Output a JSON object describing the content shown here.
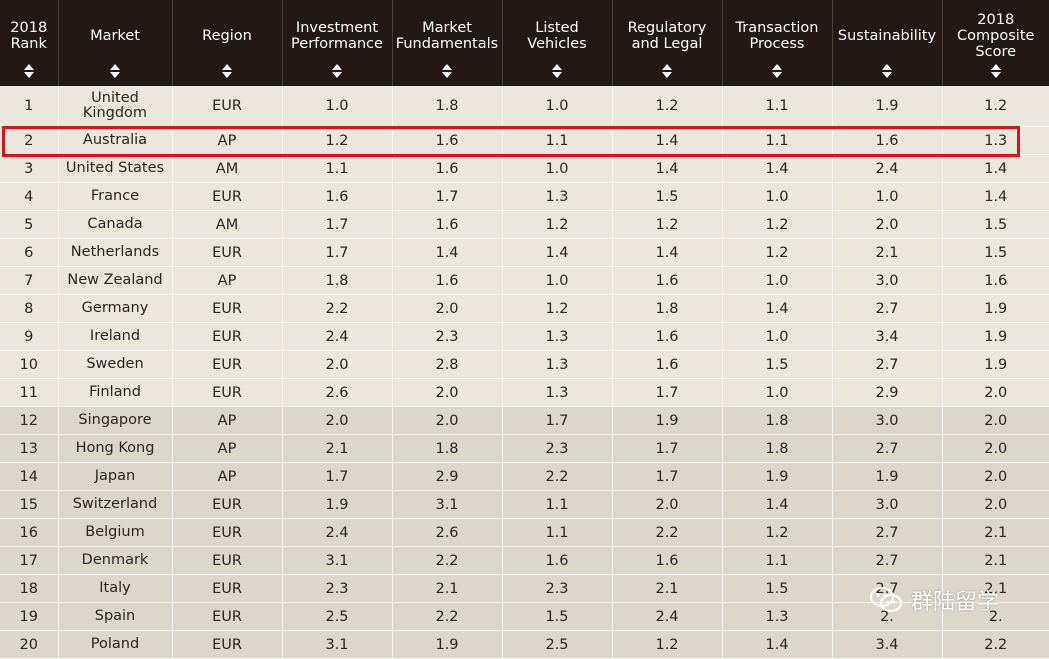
{
  "columns": [
    {
      "key": "rank",
      "label": "2018\nRank"
    },
    {
      "key": "market",
      "label": "Market"
    },
    {
      "key": "region",
      "label": "Region"
    },
    {
      "key": "investment_performance",
      "label": "Investment\nPerformance"
    },
    {
      "key": "market_fundamentals",
      "label": "Market\nFundamentals"
    },
    {
      "key": "listed_vehicles",
      "label": "Listed\nVehicles"
    },
    {
      "key": "regulatory_and_legal",
      "label": "Regulatory\nand Legal"
    },
    {
      "key": "transaction_process",
      "label": "Transaction\nProcess"
    },
    {
      "key": "sustainability",
      "label": "Sustainability"
    },
    {
      "key": "composite_score",
      "label": "2018\nComposite\nScore"
    }
  ],
  "rows": [
    {
      "rank": "1",
      "market": "United Kingdom",
      "region": "EUR",
      "investment_performance": "1.0",
      "market_fundamentals": "1.8",
      "listed_vehicles": "1.0",
      "regulatory_and_legal": "1.2",
      "transaction_process": "1.1",
      "sustainability": "1.9",
      "composite_score": "1.2"
    },
    {
      "rank": "2",
      "market": "Australia",
      "region": "AP",
      "investment_performance": "1.2",
      "market_fundamentals": "1.6",
      "listed_vehicles": "1.1",
      "regulatory_and_legal": "1.4",
      "transaction_process": "1.1",
      "sustainability": "1.6",
      "composite_score": "1.3"
    },
    {
      "rank": "3",
      "market": "United States",
      "region": "AM",
      "investment_performance": "1.1",
      "market_fundamentals": "1.6",
      "listed_vehicles": "1.0",
      "regulatory_and_legal": "1.4",
      "transaction_process": "1.4",
      "sustainability": "2.4",
      "composite_score": "1.4"
    },
    {
      "rank": "4",
      "market": "France",
      "region": "EUR",
      "investment_performance": "1.6",
      "market_fundamentals": "1.7",
      "listed_vehicles": "1.3",
      "regulatory_and_legal": "1.5",
      "transaction_process": "1.0",
      "sustainability": "1.0",
      "composite_score": "1.4"
    },
    {
      "rank": "5",
      "market": "Canada",
      "region": "AM",
      "investment_performance": "1.7",
      "market_fundamentals": "1.6",
      "listed_vehicles": "1.2",
      "regulatory_and_legal": "1.2",
      "transaction_process": "1.2",
      "sustainability": "2.0",
      "composite_score": "1.5"
    },
    {
      "rank": "6",
      "market": "Netherlands",
      "region": "EUR",
      "investment_performance": "1.7",
      "market_fundamentals": "1.4",
      "listed_vehicles": "1.4",
      "regulatory_and_legal": "1.4",
      "transaction_process": "1.2",
      "sustainability": "2.1",
      "composite_score": "1.5"
    },
    {
      "rank": "7",
      "market": "New Zealand",
      "region": "AP",
      "investment_performance": "1.8",
      "market_fundamentals": "1.6",
      "listed_vehicles": "1.0",
      "regulatory_and_legal": "1.6",
      "transaction_process": "1.0",
      "sustainability": "3.0",
      "composite_score": "1.6"
    },
    {
      "rank": "8",
      "market": "Germany",
      "region": "EUR",
      "investment_performance": "2.2",
      "market_fundamentals": "2.0",
      "listed_vehicles": "1.2",
      "regulatory_and_legal": "1.8",
      "transaction_process": "1.4",
      "sustainability": "2.7",
      "composite_score": "1.9"
    },
    {
      "rank": "9",
      "market": "Ireland",
      "region": "EUR",
      "investment_performance": "2.4",
      "market_fundamentals": "2.3",
      "listed_vehicles": "1.3",
      "regulatory_and_legal": "1.6",
      "transaction_process": "1.0",
      "sustainability": "3.4",
      "composite_score": "1.9"
    },
    {
      "rank": "10",
      "market": "Sweden",
      "region": "EUR",
      "investment_performance": "2.0",
      "market_fundamentals": "2.8",
      "listed_vehicles": "1.3",
      "regulatory_and_legal": "1.6",
      "transaction_process": "1.5",
      "sustainability": "2.7",
      "composite_score": "1.9"
    },
    {
      "rank": "11",
      "market": "Finland",
      "region": "EUR",
      "investment_performance": "2.6",
      "market_fundamentals": "2.0",
      "listed_vehicles": "1.3",
      "regulatory_and_legal": "1.7",
      "transaction_process": "1.0",
      "sustainability": "2.9",
      "composite_score": "2.0"
    },
    {
      "rank": "12",
      "market": "Singapore",
      "region": "AP",
      "investment_performance": "2.0",
      "market_fundamentals": "2.0",
      "listed_vehicles": "1.7",
      "regulatory_and_legal": "1.9",
      "transaction_process": "1.8",
      "sustainability": "3.0",
      "composite_score": "2.0"
    },
    {
      "rank": "13",
      "market": "Hong Kong",
      "region": "AP",
      "investment_performance": "2.1",
      "market_fundamentals": "1.8",
      "listed_vehicles": "2.3",
      "regulatory_and_legal": "1.7",
      "transaction_process": "1.8",
      "sustainability": "2.7",
      "composite_score": "2.0"
    },
    {
      "rank": "14",
      "market": "Japan",
      "region": "AP",
      "investment_performance": "1.7",
      "market_fundamentals": "2.9",
      "listed_vehicles": "2.2",
      "regulatory_and_legal": "1.7",
      "transaction_process": "1.9",
      "sustainability": "1.9",
      "composite_score": "2.0"
    },
    {
      "rank": "15",
      "market": "Switzerland",
      "region": "EUR",
      "investment_performance": "1.9",
      "market_fundamentals": "3.1",
      "listed_vehicles": "1.1",
      "regulatory_and_legal": "2.0",
      "transaction_process": "1.4",
      "sustainability": "3.0",
      "composite_score": "2.0"
    },
    {
      "rank": "16",
      "market": "Belgium",
      "region": "EUR",
      "investment_performance": "2.4",
      "market_fundamentals": "2.6",
      "listed_vehicles": "1.1",
      "regulatory_and_legal": "2.2",
      "transaction_process": "1.2",
      "sustainability": "2.7",
      "composite_score": "2.1"
    },
    {
      "rank": "17",
      "market": "Denmark",
      "region": "EUR",
      "investment_performance": "3.1",
      "market_fundamentals": "2.2",
      "listed_vehicles": "1.6",
      "regulatory_and_legal": "1.6",
      "transaction_process": "1.1",
      "sustainability": "2.7",
      "composite_score": "2.1"
    },
    {
      "rank": "18",
      "market": "Italy",
      "region": "EUR",
      "investment_performance": "2.3",
      "market_fundamentals": "2.1",
      "listed_vehicles": "2.3",
      "regulatory_and_legal": "2.1",
      "transaction_process": "1.5",
      "sustainability": "2.7",
      "composite_score": "2.1"
    },
    {
      "rank": "19",
      "market": "Spain",
      "region": "EUR",
      "investment_performance": "2.5",
      "market_fundamentals": "2.2",
      "listed_vehicles": "1.5",
      "regulatory_and_legal": "2.4",
      "transaction_process": "1.3",
      "sustainability": "2.",
      "composite_score": "2."
    },
    {
      "rank": "20",
      "market": "Poland",
      "region": "EUR",
      "investment_performance": "3.1",
      "market_fundamentals": "1.9",
      "listed_vehicles": "2.5",
      "regulatory_and_legal": "1.2",
      "transaction_process": "1.4",
      "sustainability": "3.4",
      "composite_score": "2.2"
    }
  ],
  "highlighted_market": "Australia",
  "watermark": {
    "text": "群陆留学",
    "icon": "wechat-icon"
  },
  "colors": {
    "header_bg": "#231815",
    "header_text": "#ffffff",
    "row_light": "#ebe7dd",
    "row_dark": "#ddd6ca",
    "highlight": "#d7151c"
  }
}
